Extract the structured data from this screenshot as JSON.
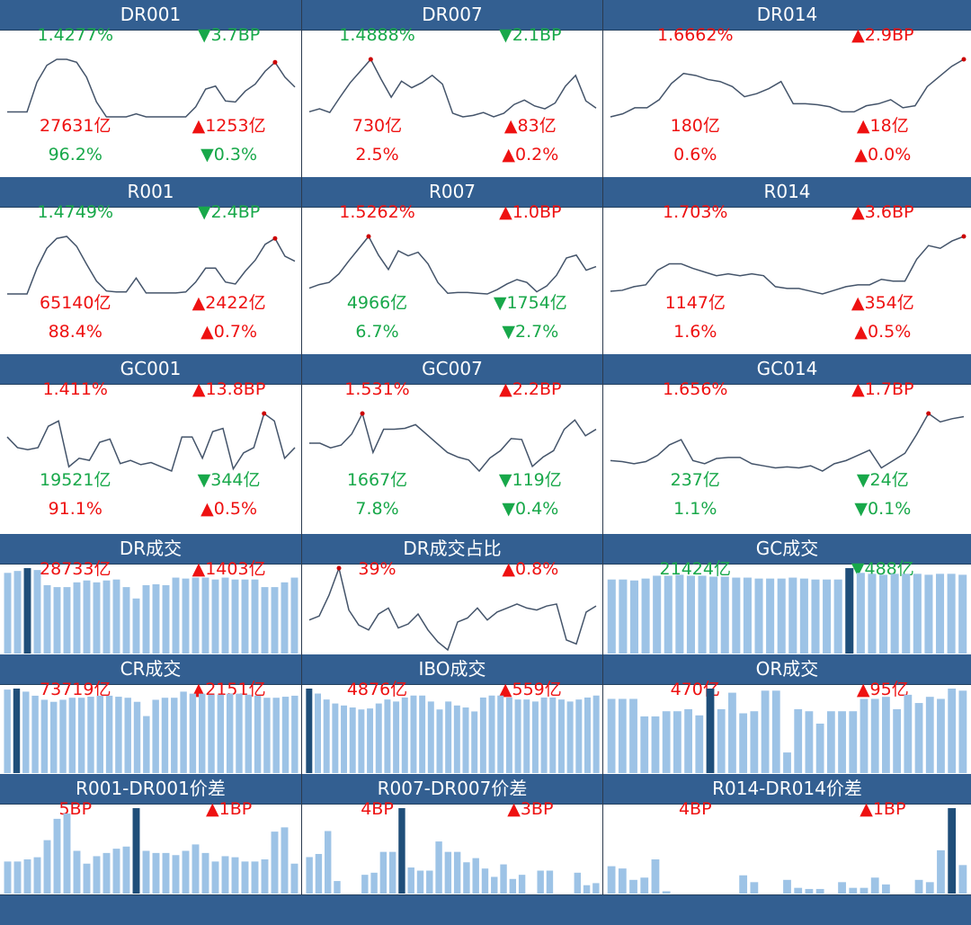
{
  "colors": {
    "header": "#335f91",
    "up": "#ee1111",
    "down": "#18a84a",
    "bar": "#9dc3e6",
    "bar_highlight": "#1f4e79",
    "line": "#44546a",
    "point": "#cc0000"
  },
  "panels": [
    {
      "title": "DR001",
      "kind": "line",
      "rows": [
        [
          {
            "text": "1.4277%",
            "dir": "down"
          },
          {
            "text": "▼3.7BP",
            "dir": "down"
          }
        ],
        [
          {
            "text": "27631亿",
            "dir": "up"
          },
          {
            "text": "▲1253亿",
            "dir": "up"
          }
        ],
        [
          {
            "text": "96.2%",
            "dir": "down"
          },
          {
            "text": "▼0.3%",
            "dir": "down"
          }
        ]
      ],
      "chart_data": {
        "type": "line",
        "values": [
          5,
          5,
          5,
          35,
          52,
          58,
          58,
          55,
          40,
          15,
          0,
          0,
          0,
          3,
          0,
          0,
          0,
          0,
          0,
          10,
          28,
          31,
          16,
          15,
          26,
          33,
          46,
          55,
          40,
          30
        ],
        "highlight": 27
      }
    },
    {
      "title": "DR007",
      "kind": "line",
      "rows": [
        [
          {
            "text": "1.4888%",
            "dir": "down"
          },
          {
            "text": "▼2.1BP",
            "dir": "down"
          }
        ],
        [
          {
            "text": "730亿",
            "dir": "up"
          },
          {
            "text": "▲83亿",
            "dir": "up"
          }
        ],
        [
          {
            "text": "2.5%",
            "dir": "up"
          },
          {
            "text": "▲0.2%",
            "dir": "up"
          }
        ]
      ],
      "chart_data": {
        "type": "line",
        "values": [
          10,
          14,
          9,
          30,
          50,
          66,
          82,
          55,
          30,
          52,
          43,
          50,
          60,
          48,
          8,
          3,
          5,
          9,
          3,
          8,
          20,
          26,
          18,
          14,
          22,
          45,
          60,
          25,
          15
        ],
        "highlight": 6
      }
    },
    {
      "title": "DR014",
      "kind": "line",
      "rows": [
        [
          {
            "text": "1.6662%",
            "dir": "up"
          },
          {
            "text": "▲2.9BP",
            "dir": "up"
          }
        ],
        [
          {
            "text": "180亿",
            "dir": "up"
          },
          {
            "text": "▲18亿",
            "dir": "up"
          }
        ],
        [
          {
            "text": "0.6%",
            "dir": "up"
          },
          {
            "text": "▲0.0%",
            "dir": "up"
          }
        ]
      ],
      "chart_data": {
        "type": "line",
        "values": [
          5,
          8,
          14,
          14,
          22,
          38,
          48,
          46,
          42,
          40,
          35,
          25,
          28,
          33,
          40,
          18,
          18,
          17,
          15,
          10,
          10,
          16,
          18,
          22,
          14,
          16,
          35,
          45,
          55,
          62
        ],
        "highlight": 29
      }
    },
    {
      "title": "R001",
      "kind": "line",
      "rows": [
        [
          {
            "text": "1.4749%",
            "dir": "down"
          },
          {
            "text": "▼2.4BP",
            "dir": "down"
          }
        ],
        [
          {
            "text": "65140亿",
            "dir": "up"
          },
          {
            "text": "▲2422亿",
            "dir": "up"
          }
        ],
        [
          {
            "text": "88.4%",
            "dir": "up"
          },
          {
            "text": "▲0.7%",
            "dir": "up"
          }
        ]
      ],
      "chart_data": {
        "type": "line",
        "values": [
          2,
          2,
          2,
          28,
          48,
          58,
          60,
          50,
          32,
          15,
          5,
          4,
          4,
          18,
          3,
          3,
          3,
          3,
          4,
          14,
          28,
          28,
          14,
          12,
          25,
          36,
          52,
          58,
          40,
          35
        ],
        "highlight": 27
      }
    },
    {
      "title": "R007",
      "kind": "line",
      "rows": [
        [
          {
            "text": "1.5262%",
            "dir": "up"
          },
          {
            "text": "▲1.0BP",
            "dir": "up"
          }
        ],
        [
          {
            "text": "4966亿",
            "dir": "down"
          },
          {
            "text": "▼1754亿",
            "dir": "down"
          }
        ],
        [
          {
            "text": "6.7%",
            "dir": "down"
          },
          {
            "text": "▼2.7%",
            "dir": "down"
          }
        ]
      ],
      "chart_data": {
        "type": "line",
        "values": [
          10,
          15,
          18,
          30,
          48,
          65,
          82,
          56,
          36,
          62,
          55,
          60,
          44,
          18,
          3,
          4,
          4,
          3,
          2,
          8,
          16,
          22,
          18,
          5,
          13,
          28,
          52,
          56,
          35,
          40
        ],
        "highlight": 6
      }
    },
    {
      "title": "R014",
      "kind": "line",
      "rows": [
        [
          {
            "text": "1.703%",
            "dir": "up"
          },
          {
            "text": "▲3.6BP",
            "dir": "up"
          }
        ],
        [
          {
            "text": "1147亿",
            "dir": "up"
          },
          {
            "text": "▲354亿",
            "dir": "up"
          }
        ],
        [
          {
            "text": "1.6%",
            "dir": "up"
          },
          {
            "text": "▲0.5%",
            "dir": "up"
          }
        ]
      ],
      "chart_data": {
        "type": "line",
        "values": [
          5,
          6,
          10,
          12,
          28,
          35,
          35,
          30,
          26,
          22,
          24,
          22,
          24,
          22,
          10,
          8,
          8,
          5,
          2,
          6,
          10,
          12,
          12,
          18,
          16,
          16,
          40,
          55,
          52,
          60,
          65
        ],
        "highlight": 30
      }
    },
    {
      "title": "GC001",
      "kind": "line",
      "rows": [
        [
          {
            "text": "1.411%",
            "dir": "up"
          },
          {
            "text": "▲13.8BP",
            "dir": "up"
          }
        ],
        [
          {
            "text": "19521亿",
            "dir": "down"
          },
          {
            "text": "▼344亿",
            "dir": "down"
          }
        ],
        [
          {
            "text": "91.1%",
            "dir": "up"
          },
          {
            "text": "▲0.5%",
            "dir": "up"
          }
        ]
      ],
      "chart_data": {
        "type": "line",
        "values": [
          40,
          30,
          28,
          30,
          50,
          55,
          12,
          20,
          18,
          35,
          38,
          15,
          18,
          14,
          16,
          12,
          8,
          40,
          40,
          20,
          45,
          48,
          10,
          25,
          30,
          62,
          55,
          20,
          30
        ],
        "highlight": 25
      }
    },
    {
      "title": "GC007",
      "kind": "line",
      "rows": [
        [
          {
            "text": "1.531%",
            "dir": "up"
          },
          {
            "text": "▲2.2BP",
            "dir": "up"
          }
        ],
        [
          {
            "text": "1667亿",
            "dir": "down"
          },
          {
            "text": "▼119亿",
            "dir": "down"
          }
        ],
        [
          {
            "text": "7.8%",
            "dir": "down"
          },
          {
            "text": "▼0.4%",
            "dir": "down"
          }
        ]
      ],
      "chart_data": {
        "type": "line",
        "values": [
          30,
          30,
          25,
          28,
          40,
          62,
          20,
          45,
          45,
          46,
          50,
          40,
          30,
          20,
          15,
          12,
          0,
          14,
          22,
          35,
          34,
          5,
          15,
          22,
          45,
          55,
          38,
          45
        ],
        "highlight": 5
      }
    },
    {
      "title": "GC014",
      "kind": "line",
      "rows": [
        [
          {
            "text": "1.656%",
            "dir": "up"
          },
          {
            "text": "▲1.7BP",
            "dir": "up"
          }
        ],
        [
          {
            "text": "237亿",
            "dir": "down"
          },
          {
            "text": "▼24亿",
            "dir": "down"
          }
        ],
        [
          {
            "text": "1.1%",
            "dir": "down"
          },
          {
            "text": "▼0.1%",
            "dir": "down"
          }
        ]
      ],
      "chart_data": {
        "type": "line",
        "values": [
          25,
          24,
          22,
          24,
          30,
          40,
          45,
          25,
          22,
          27,
          28,
          28,
          22,
          20,
          18,
          19,
          18,
          20,
          15,
          22,
          25,
          30,
          35,
          18,
          25,
          32,
          50,
          70,
          62,
          65,
          67
        ],
        "highlight": 27
      }
    },
    {
      "title": "DR成交",
      "kind": "bar",
      "rows": [
        [
          {
            "text": "28733亿",
            "dir": "up"
          },
          {
            "text": "▲1403亿",
            "dir": "up"
          }
        ]
      ],
      "chart_data": {
        "type": "bar",
        "values": [
          85,
          87,
          90,
          88,
          72,
          70,
          70,
          75,
          77,
          75,
          77,
          78,
          70,
          58,
          72,
          73,
          72,
          80,
          79,
          80,
          80,
          78,
          80,
          78,
          78,
          78,
          70,
          70,
          75,
          80
        ],
        "highlight": 2
      }
    },
    {
      "title": "DR成交占比",
      "kind": "line",
      "rows": [
        [
          {
            "text": "39%",
            "dir": "up"
          },
          {
            "text": "▲0.8%",
            "dir": "up"
          }
        ]
      ],
      "chart_data": {
        "type": "line",
        "values": [
          30,
          34,
          55,
          82,
          40,
          25,
          20,
          36,
          42,
          22,
          26,
          36,
          20,
          8,
          0,
          28,
          32,
          42,
          30,
          38,
          42,
          46,
          42,
          40,
          44,
          46,
          10,
          6,
          38,
          44
        ],
        "highlight": 3
      }
    },
    {
      "title": "GC成交",
      "kind": "bar",
      "rows": [
        [
          {
            "text": "21424亿",
            "dir": "down"
          },
          {
            "text": "▼488亿",
            "dir": "down"
          }
        ]
      ],
      "chart_data": {
        "type": "bar",
        "values": [
          78,
          78,
          77,
          79,
          82,
          82,
          83,
          82,
          82,
          81,
          81,
          80,
          80,
          79,
          79,
          79,
          80,
          79,
          78,
          78,
          78,
          90,
          85,
          84,
          83,
          84,
          84,
          84,
          83,
          84,
          84,
          83
        ],
        "highlight": 21
      }
    },
    {
      "title": "CR成交",
      "kind": "bar",
      "rows": [
        [
          {
            "text": "73719亿",
            "dir": "up"
          },
          {
            "text": "▲2151亿",
            "dir": "up"
          }
        ]
      ],
      "chart_data": {
        "type": "bar",
        "values": [
          82,
          83,
          80,
          76,
          72,
          70,
          72,
          74,
          74,
          75,
          76,
          76,
          75,
          74,
          70,
          56,
          72,
          74,
          74,
          80,
          78,
          78,
          77,
          77,
          78,
          78,
          77,
          76,
          74,
          74,
          75,
          76
        ],
        "highlight": 1
      }
    },
    {
      "title": "IBO成交",
      "kind": "bar",
      "rows": [
        [
          {
            "text": "4876亿",
            "dir": "up"
          },
          {
            "text": "▲559亿",
            "dir": "up"
          }
        ]
      ],
      "chart_data": {
        "type": "bar",
        "values": [
          85,
          80,
          74,
          70,
          68,
          66,
          64,
          65,
          70,
          74,
          72,
          76,
          78,
          78,
          72,
          64,
          72,
          68,
          66,
          62,
          76,
          78,
          78,
          76,
          74,
          74,
          72,
          76,
          76,
          74,
          72,
          74,
          76,
          78
        ],
        "highlight": 0
      }
    },
    {
      "title": "OR成交",
      "kind": "bar",
      "rows": [
        [
          {
            "text": "470亿",
            "dir": "up"
          },
          {
            "text": "▲95亿",
            "dir": "up"
          }
        ]
      ],
      "chart_data": {
        "type": "bar",
        "values": [
          72,
          72,
          72,
          55,
          55,
          60,
          60,
          62,
          56,
          82,
          62,
          78,
          58,
          60,
          80,
          80,
          20,
          62,
          60,
          48,
          60,
          60,
          60,
          72,
          72,
          74,
          62,
          76,
          68,
          74,
          72,
          82,
          80
        ],
        "highlight": 9
      }
    },
    {
      "title": "R001-DR001价差",
      "kind": "bar",
      "rows": [
        [
          {
            "text": "5BP",
            "dir": "up"
          },
          {
            "text": "▲1BP",
            "dir": "up"
          }
        ]
      ],
      "chart_data": {
        "type": "bar",
        "values": [
          30,
          30,
          32,
          34,
          50,
          70,
          75,
          40,
          28,
          35,
          38,
          42,
          44,
          80,
          40,
          38,
          38,
          36,
          40,
          46,
          38,
          30,
          35,
          34,
          30,
          30,
          32,
          58,
          62,
          28
        ],
        "highlight": 13
      }
    },
    {
      "title": "R007-DR007价差",
      "kind": "bar",
      "rows": [
        [
          {
            "text": "4BP",
            "dir": "up"
          },
          {
            "text": "▲3BP",
            "dir": "up"
          }
        ]
      ],
      "chart_data": {
        "type": "bar",
        "values": [
          35,
          38,
          60,
          12,
          0,
          0,
          18,
          20,
          40,
          40,
          82,
          25,
          22,
          22,
          50,
          40,
          40,
          30,
          34,
          24,
          16,
          28,
          14,
          18,
          0,
          22,
          22,
          0,
          0,
          20,
          8,
          10
        ],
        "highlight": 10
      }
    },
    {
      "title": "R014-DR014价差",
      "kind": "bar",
      "rows": [
        [
          {
            "text": "4BP",
            "dir": "up"
          },
          {
            "text": "▲1BP",
            "dir": "up"
          }
        ]
      ],
      "chart_data": {
        "type": "bar",
        "values": [
          24,
          22,
          12,
          14,
          30,
          2,
          0,
          0,
          0,
          0,
          0,
          0,
          16,
          10,
          0,
          0,
          12,
          5,
          4,
          4,
          0,
          10,
          5,
          5,
          14,
          8,
          0,
          0,
          12,
          10,
          38,
          75,
          25
        ],
        "highlight": 31
      }
    }
  ]
}
